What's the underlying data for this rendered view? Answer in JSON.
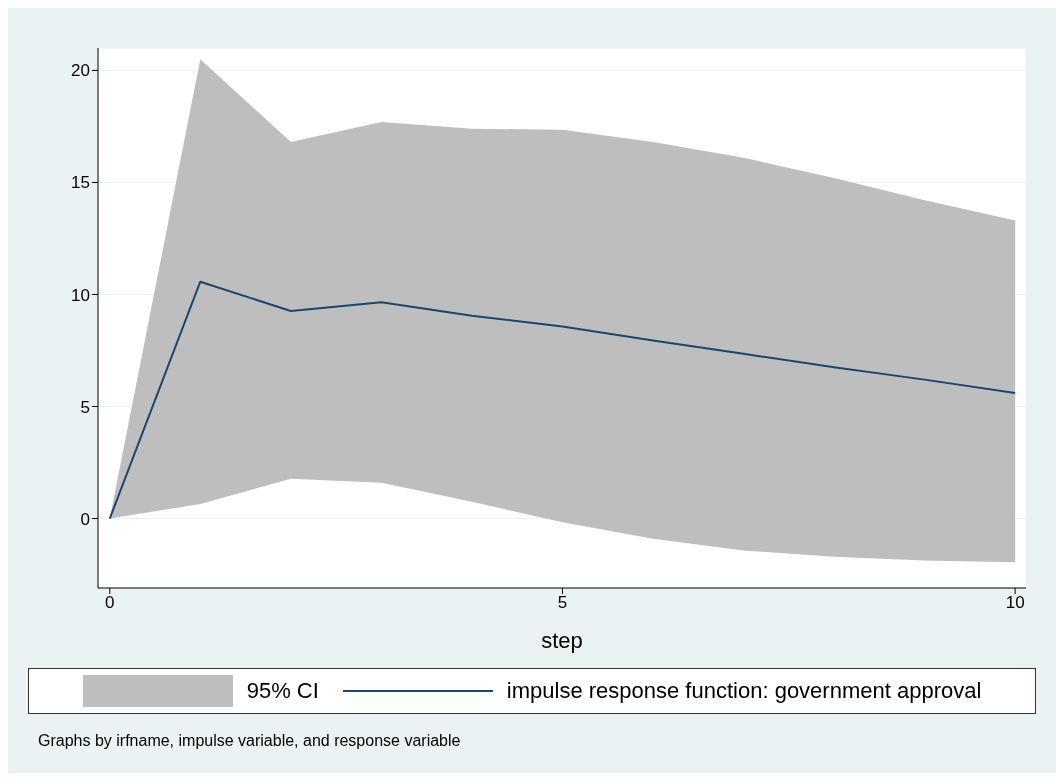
{
  "chart_data": {
    "type": "line",
    "xlabel": "step",
    "x": [
      0,
      1,
      2,
      3,
      4,
      5,
      6,
      7,
      8,
      9,
      10
    ],
    "series": [
      {
        "name": "impulse response function: government approval",
        "color": "#1a476f",
        "values": [
          0,
          10.57,
          9.26,
          9.65,
          9.05,
          8.57,
          7.95,
          7.35,
          6.75,
          6.2,
          5.6
        ],
        "lower": [
          0,
          0.65,
          1.78,
          1.6,
          0.75,
          -0.17,
          -0.9,
          -1.43,
          -1.7,
          -1.87,
          -1.95
        ],
        "upper": [
          0,
          20.5,
          16.8,
          17.7,
          17.4,
          17.35,
          16.8,
          16.1,
          15.2,
          14.2,
          13.3
        ]
      }
    ],
    "xlim": [
      -0.13,
      10.12
    ],
    "xticks": [
      0,
      5,
      10
    ],
    "ylim": [
      -3.1,
      21
    ],
    "yticks": [
      0,
      5,
      10,
      15,
      20
    ],
    "grid": "y",
    "legend": "bottom",
    "marker": "none",
    "line_style": "solid",
    "annotations": [
      "95% CI",
      "Graphs by irfname, impulse variable, and response variable"
    ]
  }
}
